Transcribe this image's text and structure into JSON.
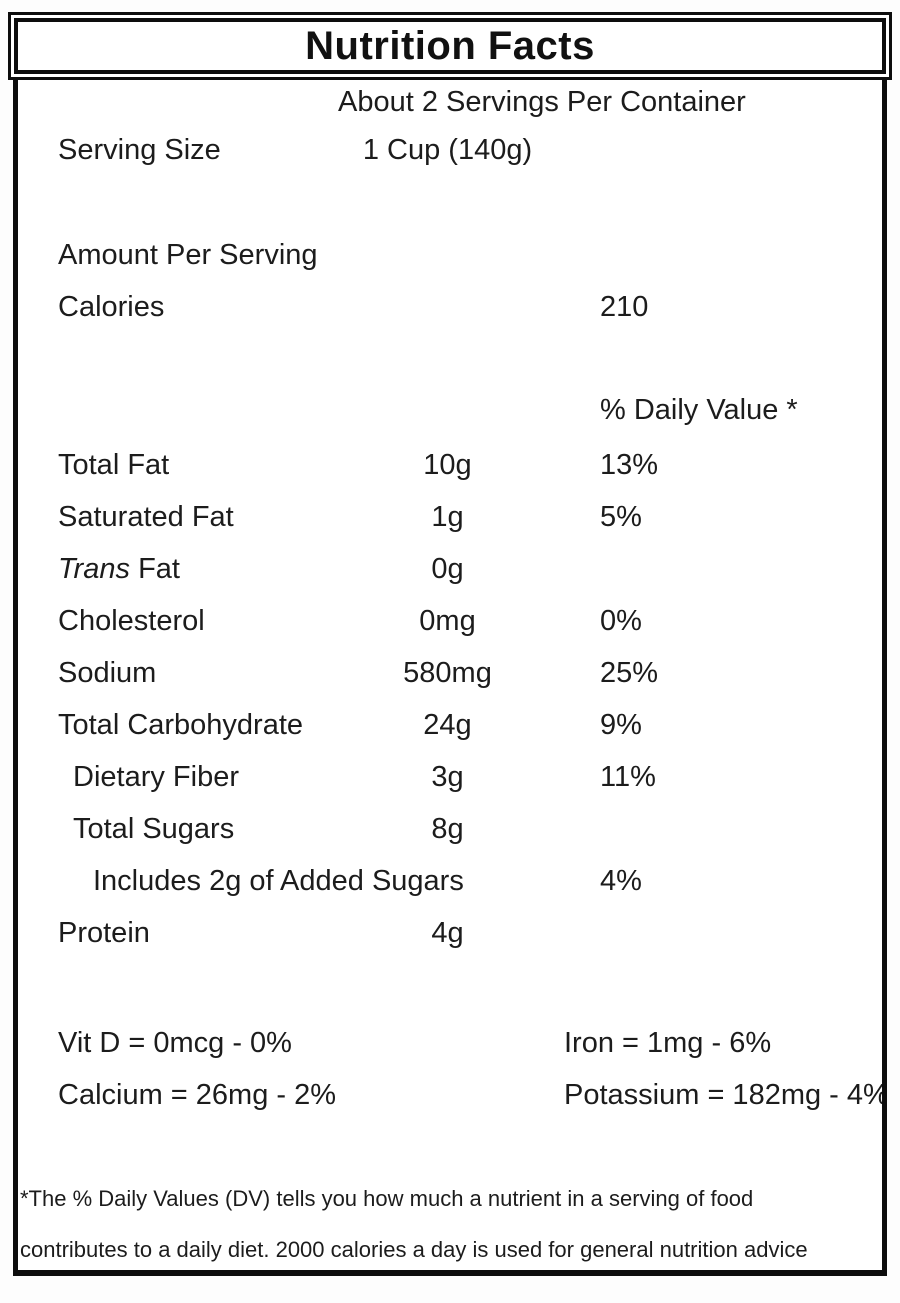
{
  "label": {
    "title": "Nutrition Facts",
    "servings_per_container": "About 2 Servings Per Container",
    "serving_size_label": "Serving Size",
    "serving_size_value": "1 Cup (140g)",
    "amount_per_serving_label": "Amount Per Serving",
    "calories_label": "Calories",
    "calories_value": "210",
    "daily_value_header": "% Daily Value *",
    "nutrients": [
      {
        "name": "Total Fat",
        "amount": "10g",
        "dv": "13%"
      },
      {
        "name": "Saturated Fat",
        "amount": "1g",
        "dv": "5%"
      },
      {
        "name": "Trans Fat",
        "name_italic": "Trans",
        "name_rest": "Fat",
        "amount": "0g",
        "dv": ""
      },
      {
        "name": "Cholesterol",
        "amount": "0mg",
        "dv": "0%"
      },
      {
        "name": "Sodium",
        "amount": "580mg",
        "dv": "25%"
      },
      {
        "name": "Total Carbohydrate",
        "amount": "24g",
        "dv": "9%"
      },
      {
        "name": "Dietary Fiber",
        "amount": "3g",
        "dv": "11%"
      },
      {
        "name": "Total Sugars",
        "amount": "8g",
        "dv": ""
      },
      {
        "name": "Includes 2g of Added Sugars",
        "amount": "",
        "dv": "4%"
      },
      {
        "name": "Protein",
        "amount": "4g",
        "dv": ""
      }
    ],
    "micronutrients": [
      {
        "left": "Vit D = 0mcg - 0%",
        "right": "Iron = 1mg - 6%"
      },
      {
        "left": "Calcium = 26mg - 2%",
        "right": "Potassium = 182mg - 4%"
      }
    ],
    "footnote_line1": "*The % Daily Values (DV) tells you how much a nutrient in a serving of food",
    "footnote_line2": "contributes to a daily diet. 2000 calories a day is used for general nutrition advice",
    "colors": {
      "text": "#1c1c1c",
      "border": "#0d0d0d",
      "background": "#ffffff"
    }
  }
}
